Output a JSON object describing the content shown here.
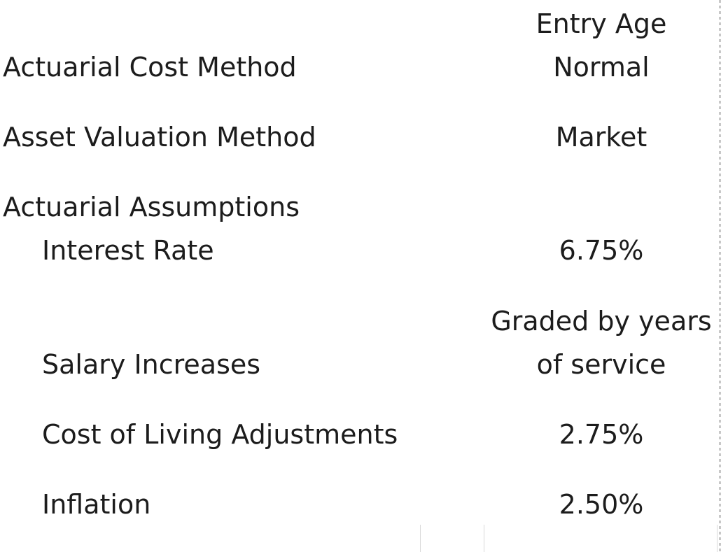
{
  "rows": {
    "cost_method": {
      "label": "Actuarial Cost Method",
      "value_line1": "Entry Age",
      "value_line2": "Normal"
    },
    "asset_valuation": {
      "label": "Asset Valuation Method",
      "value": "Market"
    },
    "assumptions_header": {
      "label": "Actuarial Assumptions"
    },
    "interest_rate": {
      "label": "Interest Rate",
      "value": "6.75%"
    },
    "salary_increases": {
      "label": "Salary Increases",
      "value_line1": "Graded by years",
      "value_line2": "of service"
    },
    "cola": {
      "label": "Cost of Living Adjustments",
      "value": "2.75%"
    },
    "inflation": {
      "label": "Inflation",
      "value": "2.50%"
    }
  }
}
